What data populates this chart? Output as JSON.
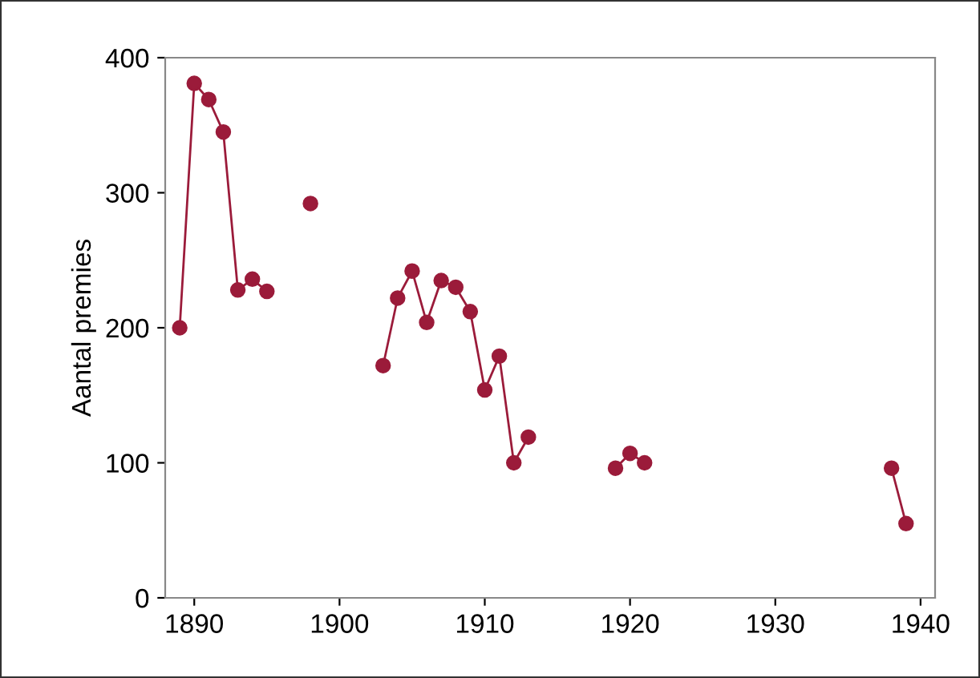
{
  "chart_data": {
    "type": "line",
    "ylabel": "Aantal premies",
    "x": [
      1889,
      1890,
      1891,
      1892,
      1893,
      1894,
      1895,
      1896,
      1898,
      1899,
      1903,
      1904,
      1905,
      1906,
      1907,
      1908,
      1909,
      1910,
      1911,
      1912,
      1913,
      1914,
      1919,
      1920,
      1921,
      1922,
      1938,
      1939
    ],
    "series": [
      {
        "color": "#9b1b3a",
        "values": [
          200,
          381,
          369,
          345,
          228,
          236,
          227,
          null,
          292,
          null,
          172,
          222,
          242,
          204,
          235,
          230,
          212,
          154,
          179,
          100,
          119,
          null,
          96,
          107,
          100,
          null,
          96,
          55
        ]
      }
    ],
    "xlim": [
      1888,
      1941
    ],
    "ylim": [
      0,
      400
    ],
    "xticks": [
      1890,
      1900,
      1910,
      1920,
      1930,
      1940
    ],
    "yticks": [
      0,
      100,
      200,
      300,
      400
    ],
    "marker": "circle",
    "line_style": "solid",
    "grid": false,
    "legend": false
  }
}
